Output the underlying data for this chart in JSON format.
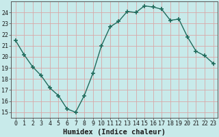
{
  "x": [
    0,
    1,
    2,
    3,
    4,
    5,
    6,
    7,
    8,
    9,
    10,
    11,
    12,
    13,
    14,
    15,
    16,
    17,
    18,
    19,
    20,
    21,
    22,
    23
  ],
  "y": [
    21.5,
    20.2,
    19.1,
    18.3,
    17.2,
    16.5,
    15.3,
    15.0,
    16.5,
    18.5,
    21.0,
    22.7,
    23.2,
    24.1,
    24.0,
    24.6,
    24.5,
    24.3,
    23.3,
    23.4,
    21.8,
    20.5,
    20.1,
    19.4
  ],
  "line_color": "#1f6b5c",
  "marker": "+",
  "markersize": 4,
  "markeredgewidth": 1.2,
  "bg_color": "#c8eaea",
  "grid_major_color": "#d8a8a8",
  "grid_minor_color": "#e0c0c0",
  "xlabel": "Humidex (Indice chaleur)",
  "xlabel_fontsize": 7.5,
  "yticks": [
    15,
    16,
    17,
    18,
    19,
    20,
    21,
    22,
    23,
    24
  ],
  "xticks": [
    0,
    1,
    2,
    3,
    4,
    5,
    6,
    7,
    8,
    9,
    10,
    11,
    12,
    13,
    14,
    15,
    16,
    17,
    18,
    19,
    20,
    21,
    22,
    23
  ],
  "xlim": [
    -0.5,
    23.5
  ],
  "ylim": [
    14.5,
    25.0
  ],
  "tick_fontsize": 6.0,
  "linewidth": 1.0
}
